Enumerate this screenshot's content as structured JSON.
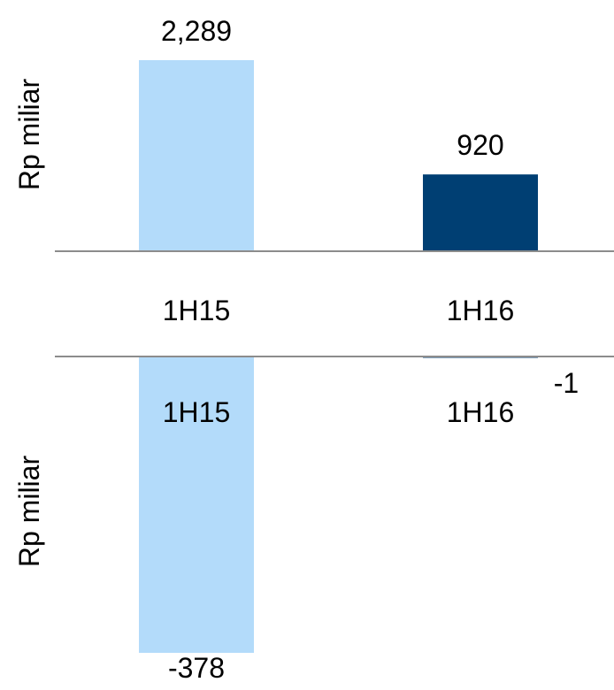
{
  "chart_data": [
    {
      "type": "bar",
      "categories": [
        "1H15",
        "1H16"
      ],
      "values": [
        2289,
        920
      ],
      "data_labels": [
        "2,289",
        "920"
      ],
      "colors": [
        "#b3dbfa",
        "#003f73"
      ],
      "ylabel": "Rp miliar",
      "xlabel": "",
      "ylim": [
        0,
        2400
      ],
      "grid": false,
      "legend": "none"
    },
    {
      "type": "bar",
      "categories": [
        "1H15",
        "1H16"
      ],
      "values": [
        -378,
        -1
      ],
      "data_labels": [
        "-378",
        "-1"
      ],
      "colors": [
        "#b3dbfa",
        "#003f73"
      ],
      "ylabel": "Rp miliar",
      "xlabel": "",
      "ylim": [
        -390,
        0
      ],
      "grid": false,
      "legend": "none"
    }
  ]
}
